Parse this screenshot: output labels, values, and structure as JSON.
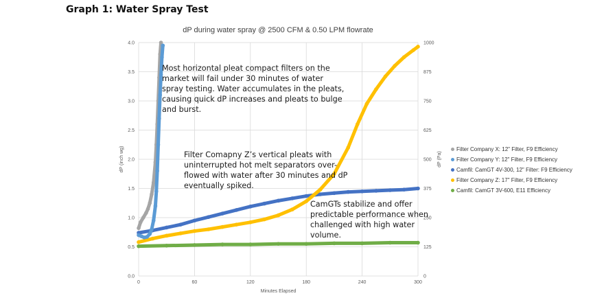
{
  "heading": "Graph 1: Water Spray Test",
  "annotations": {
    "a1": [
      "Most horizontal pleat compact filters on the",
      "market will fail under 30 minutes of water",
      "spray testing. Water accumulates in the pleats,",
      "causing quick dP increases and pleats to bulge",
      "and burst."
    ],
    "a2": [
      "Filter Comapny Z’s vertical pleats with",
      "uninterrupted hot melt separators over-",
      "flowed with water after 30 minutes and dP",
      "eventually spiked."
    ],
    "a3": [
      "CamGTs stabilize and offer",
      "predictable performance when",
      "challenged with high water",
      "volume."
    ]
  },
  "chart_data": {
    "type": "scatter",
    "title": "dP during water spray @ 2500 CFM & 0.50 LPM flowrate",
    "xlabel": "Minutes Elapsed",
    "ylabel": "dP (inch wg)",
    "y2label": "dP (Pa)",
    "xlim": [
      0,
      300
    ],
    "ylim": [
      0,
      4.0
    ],
    "y2lim": [
      0,
      1000
    ],
    "xticks": [
      "0",
      "60",
      "120",
      "180",
      "240",
      "300"
    ],
    "yticks": [
      "0.0",
      "0.5",
      "1.0",
      "1.5",
      "2.0",
      "2.5",
      "3.0",
      "3.5",
      "4.0"
    ],
    "y2ticks": [
      "0",
      "125",
      "250",
      "375",
      "500",
      "625",
      "750",
      "875",
      "1000"
    ],
    "grid": true,
    "legend_position": "right",
    "series": [
      {
        "name": "Filter Company X: 12\" Filter, F9 Efficiency",
        "color": "#a5a5a5",
        "x": [
          0,
          2,
          5,
          8,
          10,
          12,
          14,
          16,
          18,
          19,
          20,
          21,
          22,
          23,
          24
        ],
        "y": [
          0.82,
          0.92,
          1.0,
          1.08,
          1.15,
          1.25,
          1.4,
          1.6,
          1.95,
          2.25,
          2.6,
          3.0,
          3.4,
          3.8,
          4.0
        ]
      },
      {
        "name": "Filter Company Y: 12\" Filter, F9 Efficiency",
        "color": "#5b9bd5",
        "x": [
          0,
          3,
          6,
          9,
          12,
          14,
          16,
          18,
          19,
          20,
          21,
          22,
          23,
          24,
          25,
          26
        ],
        "y": [
          0.7,
          0.68,
          0.66,
          0.67,
          0.72,
          0.8,
          0.95,
          1.2,
          1.45,
          1.8,
          2.25,
          2.7,
          3.1,
          3.45,
          3.75,
          3.95
        ]
      },
      {
        "name": "Camfil: CamGT 4V-300, 12\" Filter: F9 Efficiency",
        "color": "#4472c4",
        "x": [
          0,
          15,
          30,
          45,
          60,
          75,
          90,
          105,
          120,
          135,
          150,
          165,
          180,
          195,
          210,
          225,
          240,
          255,
          270,
          285,
          300
        ],
        "y": [
          0.74,
          0.78,
          0.83,
          0.88,
          0.95,
          1.01,
          1.07,
          1.13,
          1.19,
          1.24,
          1.29,
          1.33,
          1.37,
          1.4,
          1.42,
          1.44,
          1.45,
          1.46,
          1.47,
          1.48,
          1.5
        ]
      },
      {
        "name": "Filter Company Z: 17\" Filter, F9 Efficiency",
        "color": "#ffc000",
        "x": [
          0,
          15,
          30,
          45,
          60,
          75,
          90,
          105,
          120,
          135,
          150,
          165,
          180,
          195,
          210,
          225,
          235,
          245,
          255,
          265,
          275,
          285,
          295,
          300
        ],
        "y": [
          0.58,
          0.64,
          0.69,
          0.73,
          0.77,
          0.8,
          0.84,
          0.88,
          0.92,
          0.97,
          1.04,
          1.14,
          1.28,
          1.48,
          1.75,
          2.2,
          2.6,
          2.95,
          3.2,
          3.42,
          3.6,
          3.75,
          3.87,
          3.93
        ]
      },
      {
        "name": "Camfil: CamGT 3V-600, E11 Efficiency",
        "color": "#70ad47",
        "x": [
          0,
          30,
          60,
          90,
          120,
          150,
          180,
          210,
          240,
          270,
          300
        ],
        "y": [
          0.51,
          0.52,
          0.53,
          0.54,
          0.54,
          0.55,
          0.55,
          0.56,
          0.56,
          0.57,
          0.57
        ]
      }
    ]
  }
}
